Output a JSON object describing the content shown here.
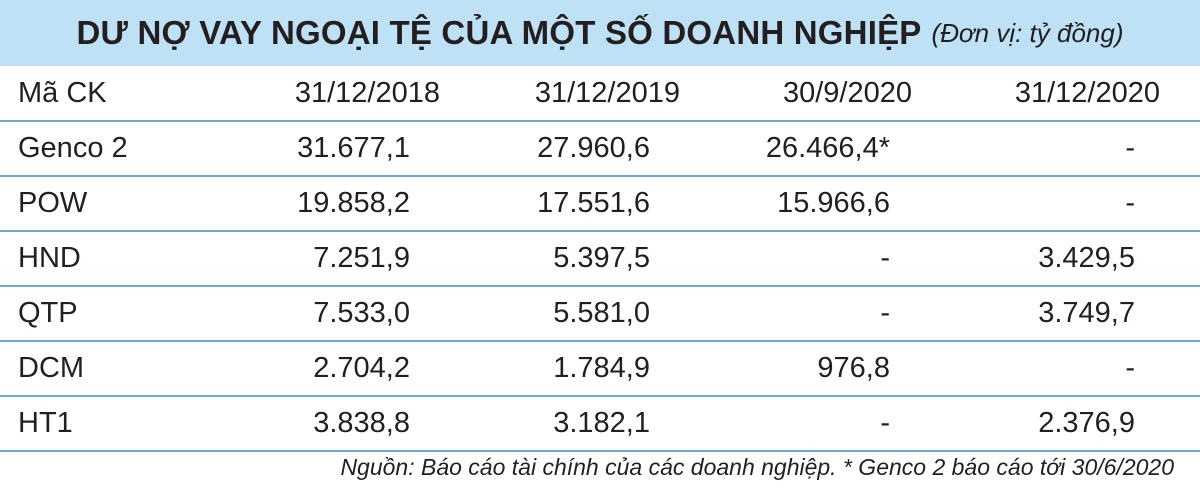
{
  "title": {
    "main": "DƯ NỢ VAY NGOẠI TỆ CỦA MỘT SỐ DOANH NGHIỆP",
    "unit": "(Đơn vị: tỷ đồng)"
  },
  "table": {
    "headers": [
      "Mã CK",
      "31/12/2018",
      "31/12/2019",
      "30/9/2020",
      "31/12/2020"
    ],
    "rows": [
      [
        "Genco 2",
        "31.677,1",
        "27.960,6",
        "26.466,4*",
        "-"
      ],
      [
        "POW",
        "19.858,2",
        "17.551,6",
        "15.966,6",
        "-"
      ],
      [
        "HND",
        "7.251,9",
        "5.397,5",
        "-",
        "3.429,5"
      ],
      [
        "QTP",
        "7.533,0",
        "5.581,0",
        "-",
        "3.749,7"
      ],
      [
        "DCM",
        "2.704,2",
        "1.784,9",
        "976,8",
        "-"
      ],
      [
        "HT1",
        "3.838,8",
        "3.182,1",
        "-",
        "2.376,9"
      ]
    ]
  },
  "source": "Nguồn: Báo cáo tài chính của các doanh nghiệp. * Genco 2 báo cáo tới 30/6/2020",
  "colors": {
    "title_background": "#bfe1f5",
    "row_divider": "#6fa8d6",
    "text": "#231f20"
  }
}
